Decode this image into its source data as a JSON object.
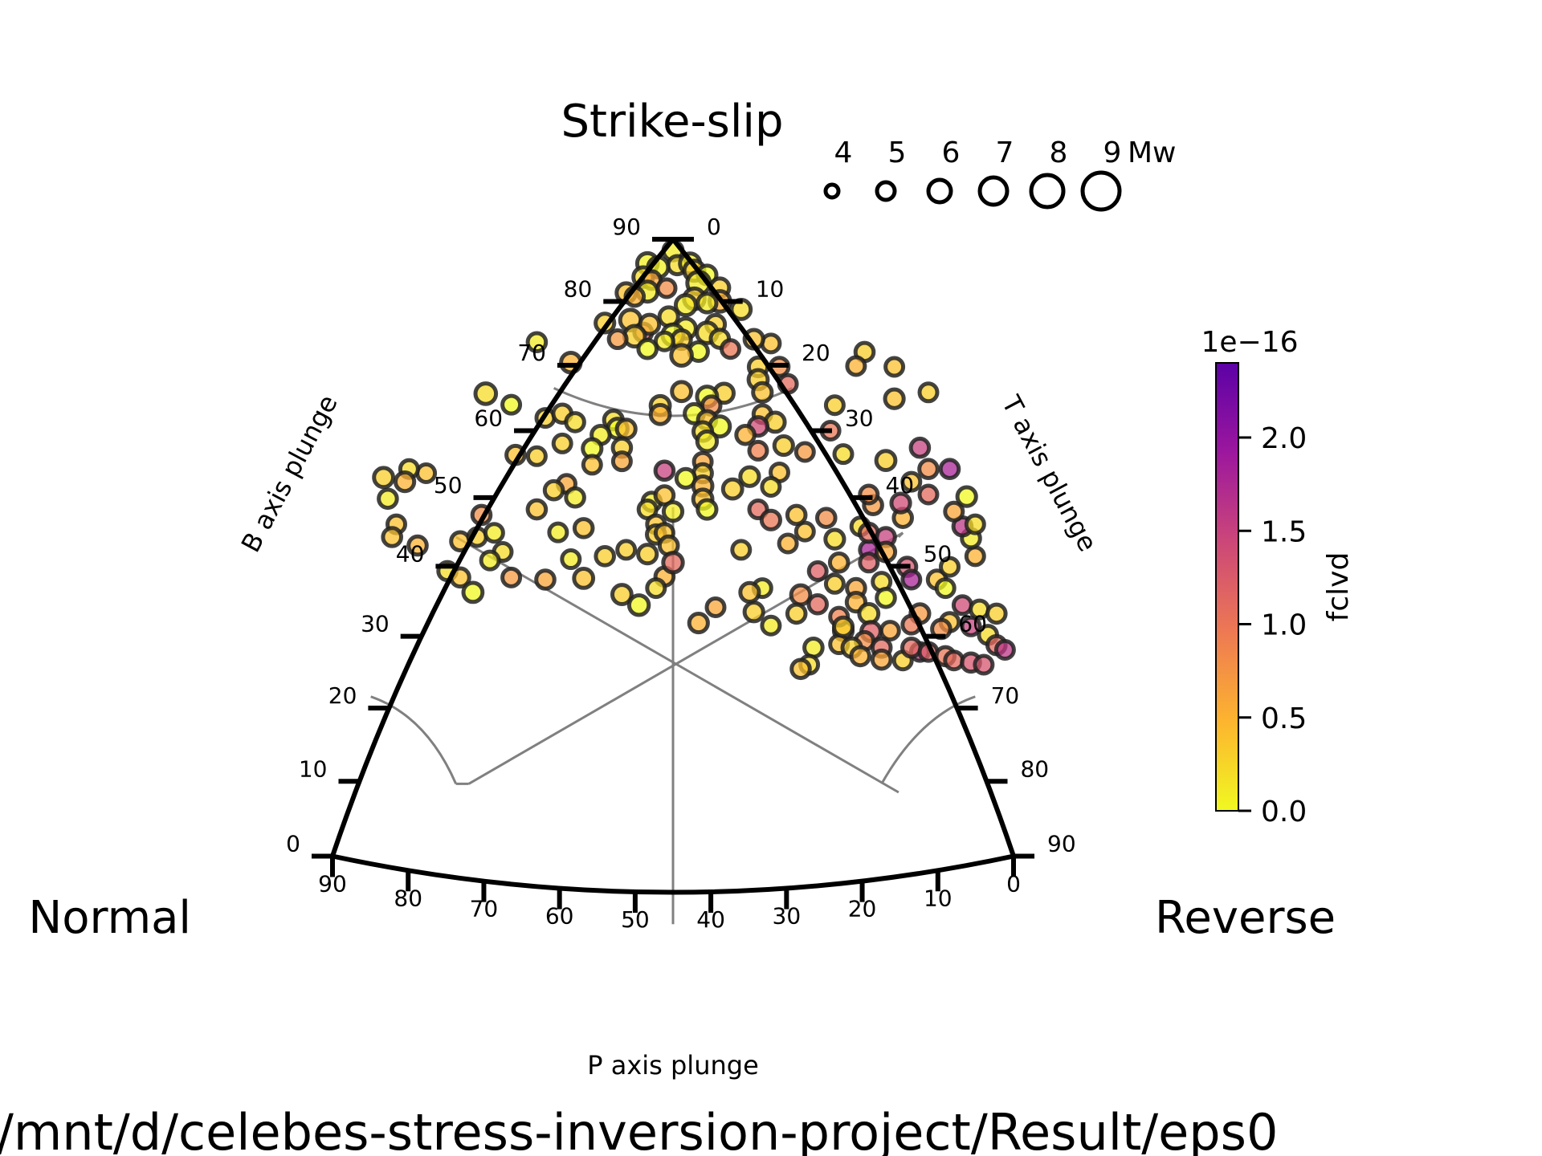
{
  "chart_data": {
    "type": "scatter",
    "plot_kind": "ternary focal-mechanism (Kaverina) diagram",
    "corners": {
      "top": "Strike-slip",
      "left": "Normal",
      "right": "Reverse"
    },
    "axes": {
      "b": {
        "label": "B axis plunge",
        "ticks": [
          0,
          10,
          20,
          30,
          40,
          50,
          60,
          70,
          80,
          90
        ]
      },
      "t": {
        "label": "T axis plunge",
        "ticks": [
          0,
          10,
          20,
          30,
          40,
          50,
          60,
          70,
          80,
          90
        ]
      },
      "p": {
        "label": "P axis plunge",
        "ticks": [
          90,
          80,
          70,
          60,
          50,
          40,
          30,
          20,
          10,
          0
        ]
      }
    },
    "size_legend": {
      "title": "Mw",
      "values": [
        4,
        5,
        6,
        7,
        8,
        9
      ]
    },
    "colorbar": {
      "label": "fclvd",
      "scale_factor": "1e−16",
      "range": [
        0.0,
        2.4
      ],
      "ticks": [
        "0.0",
        "0.5",
        "1.0",
        "1.5",
        "2.0"
      ],
      "colormap": "plasma_r",
      "colors": [
        "#f0f921",
        "#fdb42f",
        "#ed7953",
        "#cc4778",
        "#9c179e",
        "#5c01a6"
      ]
    },
    "point_style": {
      "edge_color": "#222222",
      "alpha": 0.75
    },
    "footer": "/mnt/d/celebes-stress-inversion-project/Result/eps0",
    "points_format": [
      "x",
      "y",
      "c",
      "mw"
    ],
    "points": [
      [
        0.0,
        0.973,
        0.1,
        5.3
      ],
      [
        -0.06,
        0.943,
        0.05,
        5.6
      ],
      [
        0.01,
        0.939,
        0.2,
        5.1
      ],
      [
        -0.035,
        0.934,
        0.05,
        5.5
      ],
      [
        0.04,
        0.943,
        0.1,
        5.5
      ],
      [
        0.05,
        0.926,
        0.3,
        5.5
      ],
      [
        0.08,
        0.916,
        0.0,
        5.2
      ],
      [
        -0.07,
        0.911,
        0.2,
        5.4
      ],
      [
        -0.05,
        0.904,
        0.6,
        5.0
      ],
      [
        0.06,
        0.897,
        0.1,
        6.0
      ],
      [
        0.11,
        0.886,
        0.3,
        5.2
      ],
      [
        -0.11,
        0.874,
        0.4,
        5.3
      ],
      [
        -0.06,
        0.877,
        0.1,
        5.5
      ],
      [
        -0.015,
        0.885,
        0.8,
        5.0
      ],
      [
        0.05,
        0.86,
        0.3,
        5.6
      ],
      [
        0.11,
        0.854,
        0.5,
        5.6
      ],
      [
        0.16,
        0.835,
        0.2,
        5.3
      ],
      [
        -0.09,
        0.865,
        0.5,
        5.1
      ],
      [
        0.03,
        0.845,
        0.1,
        5.5
      ],
      [
        0.08,
        0.85,
        0.1,
        5.2
      ],
      [
        -0.01,
        0.818,
        0.2,
        5.2
      ],
      [
        -0.1,
        0.81,
        0.4,
        5.6
      ],
      [
        0.1,
        0.8,
        0.3,
        5.2
      ],
      [
        -0.07,
        0.781,
        1.1,
        5.0
      ],
      [
        0.23,
        0.755,
        0.4,
        5.0
      ],
      [
        0.03,
        0.79,
        0.1,
        5.5
      ],
      [
        0.08,
        0.78,
        0.2,
        5.6
      ],
      [
        -0.055,
        0.8,
        0.4,
        5.3
      ],
      [
        0.0,
        0.775,
        0.0,
        5.7
      ],
      [
        0.02,
        0.764,
        0.3,
        5.2
      ],
      [
        -0.02,
        0.76,
        0.1,
        5.0
      ],
      [
        -0.09,
        0.772,
        0.3,
        5.6
      ],
      [
        -0.13,
        0.765,
        0.7,
        5.0
      ],
      [
        -0.06,
        0.742,
        0.0,
        5.1
      ],
      [
        0.11,
        0.766,
        0.2,
        5.1
      ],
      [
        0.135,
        0.742,
        1.0,
        5.0
      ],
      [
        0.06,
        0.736,
        0.0,
        5.2
      ],
      [
        0.02,
        0.727,
        0.4,
        5.6
      ],
      [
        -0.16,
        0.803,
        0.3,
        5.2
      ],
      [
        0.19,
        0.765,
        0.4,
        5.2
      ],
      [
        -0.24,
        0.71,
        0.5,
        5.4
      ],
      [
        -0.32,
        0.758,
        0.1,
        5.1
      ],
      [
        0.2,
        0.7,
        0.3,
        5.2
      ],
      [
        0.25,
        0.7,
        0.8,
        5.1
      ],
      [
        0.2,
        0.67,
        0.3,
        5.3
      ],
      [
        0.27,
        0.66,
        1.1,
        5.0
      ],
      [
        0.21,
        0.64,
        0.4,
        5.2
      ],
      [
        0.12,
        0.638,
        0.3,
        5.3
      ],
      [
        0.02,
        0.642,
        0.4,
        5.3
      ],
      [
        0.08,
        0.63,
        0.0,
        5.5
      ],
      [
        0.09,
        0.609,
        0.8,
        5.1
      ],
      [
        -0.03,
        0.609,
        0.3,
        5.3
      ],
      [
        -0.03,
        0.588,
        0.5,
        5.3
      ],
      [
        0.05,
        0.59,
        0.0,
        5.3
      ],
      [
        0.08,
        0.575,
        0.4,
        5.1
      ],
      [
        0.21,
        0.589,
        0.4,
        5.0
      ],
      [
        0.24,
        0.57,
        0.3,
        5.3
      ],
      [
        0.11,
        0.56,
        0.0,
        5.5
      ],
      [
        0.07,
        0.548,
        0.2,
        5.2
      ],
      [
        0.08,
        0.525,
        0.1,
        5.4
      ],
      [
        0.2,
        0.56,
        1.4,
        5.2
      ],
      [
        0.17,
        0.54,
        0.5,
        5.1
      ],
      [
        -0.14,
        0.575,
        0.2,
        5.2
      ],
      [
        -0.13,
        0.555,
        0.0,
        5.4
      ],
      [
        -0.11,
        0.554,
        0.4,
        5.2
      ],
      [
        -0.17,
        0.54,
        0.1,
        5.1
      ],
      [
        -0.38,
        0.611,
        0.0,
        5.0
      ],
      [
        -0.44,
        0.637,
        0.2,
        5.6
      ],
      [
        -0.3,
        0.58,
        0.3,
        5.0
      ],
      [
        -0.26,
        0.59,
        0.3,
        5.1
      ],
      [
        -0.23,
        0.57,
        0.2,
        5.1
      ],
      [
        -0.26,
        0.52,
        0.3,
        5.0
      ],
      [
        -0.19,
        0.508,
        0.0,
        5.2
      ],
      [
        -0.12,
        0.51,
        0.3,
        5.1
      ],
      [
        -0.19,
        0.47,
        0.4,
        5.0
      ],
      [
        -0.12,
        0.478,
        0.6,
        5.0
      ],
      [
        -0.02,
        0.456,
        1.5,
        5.1
      ],
      [
        0.07,
        0.477,
        0.6,
        5.0
      ],
      [
        0.07,
        0.45,
        0.3,
        5.1
      ],
      [
        0.03,
        0.438,
        0.0,
        5.2
      ],
      [
        0.07,
        0.42,
        0.5,
        5.3
      ],
      [
        0.14,
        0.413,
        0.3,
        5.3
      ],
      [
        0.18,
        0.442,
        0.2,
        5.2
      ],
      [
        0.25,
        0.452,
        0.4,
        5.0
      ],
      [
        0.23,
        0.418,
        0.2,
        5.0
      ],
      [
        0.07,
        0.389,
        0.4,
        5.3
      ],
      [
        0.08,
        0.365,
        0.0,
        5.2
      ],
      [
        0.2,
        0.365,
        1.1,
        5.0
      ],
      [
        -0.05,
        0.383,
        0.1,
        5.1
      ],
      [
        -0.02,
        0.398,
        0.4,
        5.1
      ],
      [
        -0.06,
        0.365,
        0.2,
        5.0
      ],
      [
        0.0,
        0.36,
        0.1,
        5.2
      ],
      [
        -0.04,
        0.33,
        0.4,
        5.0
      ],
      [
        -0.04,
        0.306,
        0.3,
        5.1
      ],
      [
        -0.02,
        0.31,
        0.4,
        5.0
      ],
      [
        -0.01,
        0.28,
        0.4,
        5.1
      ],
      [
        -0.37,
        0.493,
        0.4,
        5.1
      ],
      [
        -0.32,
        0.49,
        0.3,
        5.0
      ],
      [
        -0.25,
        0.425,
        0.6,
        5.0
      ],
      [
        -0.23,
        0.393,
        0.1,
        5.1
      ],
      [
        -0.28,
        0.41,
        0.3,
        5.1
      ],
      [
        -0.32,
        0.365,
        0.4,
        5.1
      ],
      [
        -0.21,
        0.321,
        0.4,
        5.1
      ],
      [
        -0.27,
        0.311,
        0.1,
        5.0
      ],
      [
        -0.45,
        0.352,
        0.8,
        5.1
      ],
      [
        -0.5,
        0.29,
        0.4,
        5.1
      ],
      [
        -0.24,
        0.248,
        0.1,
        5.0
      ],
      [
        -0.16,
        0.255,
        0.3,
        5.1
      ],
      [
        -0.11,
        0.27,
        0.3,
        5.0
      ],
      [
        -0.06,
        0.26,
        0.3,
        5.2
      ],
      [
        -0.21,
        0.203,
        0.4,
        5.3
      ],
      [
        -0.02,
        0.207,
        0.5,
        5.1
      ],
      [
        -0.04,
        0.18,
        0.2,
        5.0
      ],
      [
        -0.38,
        0.205,
        0.7,
        5.0
      ],
      [
        -0.3,
        0.2,
        0.6,
        5.1
      ],
      [
        -0.12,
        0.165,
        0.3,
        5.3
      ],
      [
        -0.08,
        0.14,
        0.0,
        5.4
      ],
      [
        0.0,
        0.24,
        1.1,
        5.4
      ],
      [
        0.1,
        0.135,
        0.6,
        5.0
      ],
      [
        0.06,
        0.098,
        0.5,
        5.2
      ],
      [
        0.19,
        0.124,
        0.3,
        5.2
      ],
      [
        0.21,
        0.18,
        0.1,
        5.0
      ],
      [
        0.3,
        0.164,
        0.8,
        5.3
      ],
      [
        0.34,
        0.142,
        1.1,
        5.1
      ],
      [
        0.23,
        0.092,
        0.1,
        5.0
      ],
      [
        0.4,
        0.08,
        0.5,
        5.2
      ],
      [
        0.39,
        0.048,
        0.4,
        5.0
      ],
      [
        0.29,
        0.12,
        0.3,
        5.1
      ],
      [
        0.39,
        0.113,
        0.9,
        5.0
      ],
      [
        0.18,
        0.17,
        0.4,
        5.2
      ],
      [
        0.46,
        0.27,
        1.8,
        5.0
      ],
      [
        0.38,
        0.295,
        0.2,
        5.2
      ],
      [
        0.27,
        0.285,
        0.5,
        5.0
      ],
      [
        0.31,
        0.313,
        0.4,
        5.0
      ],
      [
        0.16,
        0.27,
        0.3,
        5.0
      ],
      [
        0.23,
        0.34,
        1.0,
        5.2
      ],
      [
        0.29,
        0.352,
        0.4,
        5.1
      ],
      [
        0.36,
        0.345,
        0.8,
        5.1
      ],
      [
        0.44,
        0.325,
        0.2,
        5.0
      ],
      [
        0.46,
        0.31,
        1.1,
        5.1
      ],
      [
        0.5,
        0.3,
        1.5,
        5.1
      ],
      [
        0.5,
        0.265,
        0.6,
        5.2
      ],
      [
        0.54,
        0.345,
        0.5,
        5.1
      ],
      [
        0.535,
        0.38,
        1.4,
        5.2
      ],
      [
        0.47,
        0.375,
        0.7,
        5.1
      ],
      [
        0.46,
        0.4,
        0.8,
        5.0
      ],
      [
        0.55,
        0.23,
        1.3,
        5.1
      ],
      [
        0.56,
        0.2,
        1.8,
        5.0
      ],
      [
        0.49,
        0.195,
        0.2,
        5.0
      ],
      [
        0.46,
        0.24,
        1.2,
        5.0
      ],
      [
        0.39,
        0.24,
        0.5,
        5.1
      ],
      [
        0.34,
        0.22,
        1.2,
        5.0
      ],
      [
        0.38,
        0.19,
        0.3,
        5.0
      ],
      [
        0.43,
        0.18,
        0.6,
        5.1
      ],
      [
        0.43,
        0.147,
        0.5,
        5.2
      ],
      [
        0.46,
        0.12,
        0.2,
        5.3
      ],
      [
        0.4,
        0.089,
        0.3,
        5.2
      ],
      [
        0.5,
        0.157,
        0.0,
        5.1
      ],
      [
        0.58,
        0.12,
        0.7,
        5.2
      ],
      [
        0.56,
        0.094,
        1.0,
        5.0
      ],
      [
        0.51,
        0.08,
        0.6,
        5.0
      ],
      [
        0.465,
        0.078,
        1.2,
        5.3
      ],
      [
        0.45,
        0.056,
        0.8,
        5.0
      ],
      [
        0.42,
        0.04,
        0.3,
        5.2
      ],
      [
        0.33,
        0.04,
        0.1,
        5.1
      ],
      [
        0.32,
        0.0,
        0.2,
        5.0
      ],
      [
        0.3,
        -0.01,
        0.4,
        5.1
      ],
      [
        0.44,
        0.02,
        0.5,
        5.1
      ],
      [
        0.49,
        0.04,
        1.1,
        5.1
      ],
      [
        0.49,
        0.012,
        0.6,
        5.1
      ],
      [
        0.54,
        0.01,
        0.3,
        5.0
      ],
      [
        0.58,
        0.03,
        1.6,
        5.0
      ],
      [
        0.56,
        0.04,
        1.1,
        5.1
      ],
      [
        0.6,
        0.03,
        1.2,
        5.0
      ],
      [
        0.64,
        0.02,
        1.0,
        5.1
      ],
      [
        0.66,
        0.01,
        1.1,
        5.0
      ],
      [
        0.7,
        0.005,
        1.3,
        5.1
      ],
      [
        0.73,
        0.0,
        1.3,
        5.0
      ],
      [
        0.68,
        0.14,
        1.4,
        5.0
      ],
      [
        0.65,
        0.1,
        0.4,
        5.1
      ],
      [
        0.63,
        0.084,
        0.8,
        5.1
      ],
      [
        0.7,
        0.09,
        1.5,
        5.0
      ],
      [
        0.72,
        0.13,
        0.2,
        5.0
      ],
      [
        0.76,
        0.12,
        0.3,
        5.1
      ],
      [
        0.74,
        0.07,
        0.2,
        5.1
      ],
      [
        0.76,
        0.046,
        1.1,
        5.1
      ],
      [
        0.78,
        0.035,
        1.6,
        5.0
      ],
      [
        0.62,
        0.2,
        0.4,
        5.1
      ],
      [
        0.64,
        0.18,
        0.0,
        5.0
      ],
      [
        0.65,
        0.23,
        0.3,
        5.0
      ],
      [
        0.71,
        0.255,
        0.5,
        5.0
      ],
      [
        0.7,
        0.297,
        0.1,
        5.1
      ],
      [
        0.68,
        0.325,
        1.6,
        5.1
      ],
      [
        0.66,
        0.36,
        0.6,
        5.0
      ],
      [
        0.71,
        0.33,
        0.2,
        5.0
      ],
      [
        0.69,
        0.395,
        0.0,
        5.2
      ],
      [
        0.65,
        0.46,
        1.8,
        5.1
      ],
      [
        0.6,
        0.4,
        1.1,
        5.0
      ],
      [
        0.56,
        0.43,
        0.4,
        5.0
      ],
      [
        0.6,
        0.46,
        0.8,
        5.1
      ],
      [
        0.58,
        0.51,
        1.5,
        5.1
      ],
      [
        0.5,
        0.48,
        0.3,
        5.3
      ],
      [
        0.4,
        0.495,
        0.2,
        5.0
      ],
      [
        0.26,
        0.515,
        0.3,
        5.2
      ],
      [
        0.2,
        0.503,
        0.9,
        5.0
      ],
      [
        0.31,
        0.5,
        0.7,
        5.0
      ],
      [
        0.37,
        0.55,
        1.0,
        5.0
      ],
      [
        0.38,
        0.61,
        0.3,
        5.0
      ],
      [
        0.52,
        0.625,
        0.4,
        5.2
      ],
      [
        0.6,
        0.64,
        0.3,
        5.0
      ],
      [
        0.52,
        0.7,
        0.4,
        5.0
      ],
      [
        0.45,
        0.735,
        0.3,
        5.1
      ],
      [
        0.43,
        0.702,
        0.5,
        5.0
      ],
      [
        -0.58,
        0.45,
        0.4,
        5.0
      ],
      [
        -0.62,
        0.46,
        0.2,
        5.0
      ],
      [
        -0.63,
        0.43,
        0.5,
        5.2
      ],
      [
        -0.67,
        0.39,
        0.1,
        5.1
      ],
      [
        -0.68,
        0.44,
        0.3,
        5.3
      ],
      [
        -0.65,
        0.33,
        0.4,
        5.0
      ],
      [
        -0.66,
        0.3,
        0.4,
        5.1
      ],
      [
        -0.6,
        0.28,
        0.5,
        5.1
      ],
      [
        -0.53,
        0.22,
        0.2,
        5.1
      ],
      [
        -0.5,
        0.205,
        0.4,
        5.1
      ],
      [
        -0.47,
        0.17,
        0.0,
        5.3
      ],
      [
        -0.4,
        0.265,
        0.2,
        5.0
      ],
      [
        -0.43,
        0.245,
        0.1,
        5.0
      ],
      [
        -0.46,
        0.3,
        0.3,
        5.0
      ],
      [
        -0.42,
        0.31,
        0.1,
        5.0
      ]
    ]
  },
  "footer_text": "/mnt/d/celebes-stress-inversion-project/Result/eps0"
}
